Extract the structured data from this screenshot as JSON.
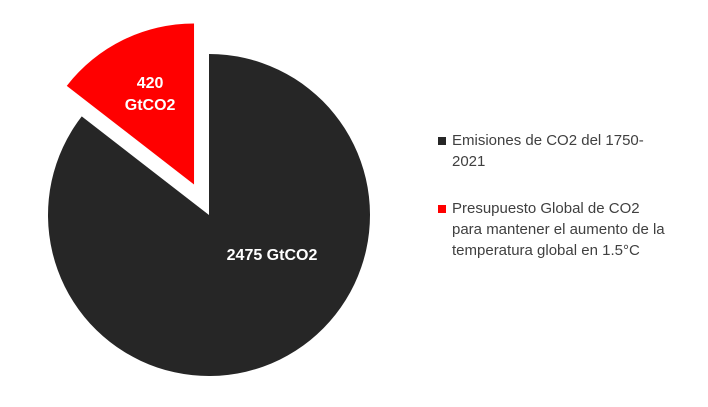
{
  "chart_data": {
    "type": "pie",
    "categories": [
      "Emisiones de CO2 del 1750-2021",
      "Presupuesto Global de CO2 para mantener el aumento de la temperatura global en 1.5°C"
    ],
    "values": [
      2475,
      420
    ],
    "value_labels": [
      "2475 GtCO2",
      "420 GtCO2"
    ],
    "colors": [
      "#262626",
      "#ff0000"
    ],
    "legend": "right"
  }
}
